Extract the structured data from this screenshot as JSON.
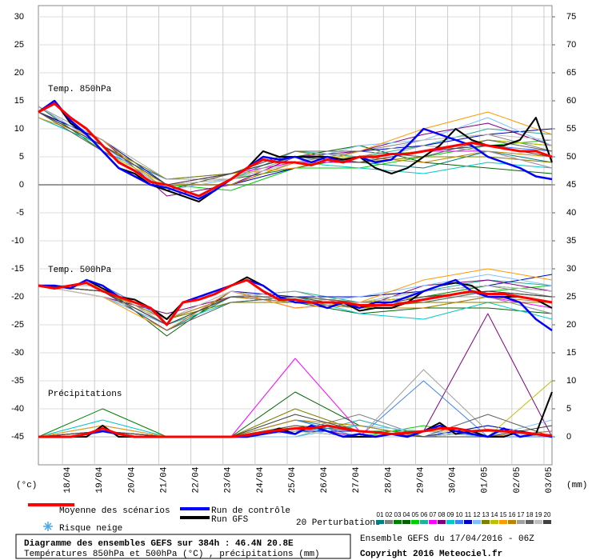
{
  "chart_data": {
    "type": "line",
    "annotations": [
      "Temp. 850hPa",
      "Temp. 500hPa",
      "Précipitations"
    ],
    "y_label": "(°c)",
    "y2_label": "(mm)",
    "xlim": [
      0,
      384
    ],
    "xticks": [
      {
        "value": 18,
        "label": "18/04"
      },
      {
        "value": 42,
        "label": "19/04"
      },
      {
        "value": 66,
        "label": "20/04"
      },
      {
        "value": 90,
        "label": "21/04"
      },
      {
        "value": 114,
        "label": "22/04"
      },
      {
        "value": 138,
        "label": "23/04"
      },
      {
        "value": 162,
        "label": "24/04"
      },
      {
        "value": 186,
        "label": "25/04"
      },
      {
        "value": 210,
        "label": "26/04"
      },
      {
        "value": 234,
        "label": "27/04"
      },
      {
        "value": 258,
        "label": "28/04"
      },
      {
        "value": 282,
        "label": "29/04"
      },
      {
        "value": 306,
        "label": "30/04"
      },
      {
        "value": 330,
        "label": "01/05"
      },
      {
        "value": 354,
        "label": "02/05"
      },
      {
        "value": 378,
        "label": "03/05"
      }
    ],
    "ylim": [
      -50,
      32
    ],
    "yticks": [
      30,
      25,
      20,
      15,
      10,
      5,
      0,
      -5,
      -10,
      -15,
      -20,
      -25,
      -30,
      -35,
      -40,
      -45
    ],
    "y2lim": [
      -5,
      77
    ],
    "y2ticks": [
      75,
      70,
      65,
      60,
      55,
      50,
      45,
      40,
      35,
      30,
      25,
      20,
      15,
      10,
      5,
      0
    ],
    "grid": true,
    "precip_axis": "y2",
    "x": [
      0,
      12,
      24,
      36,
      48,
      60,
      72,
      84,
      96,
      108,
      120,
      132,
      144,
      156,
      168,
      180,
      192,
      204,
      216,
      228,
      240,
      252,
      264,
      276,
      288,
      300,
      312,
      324,
      336,
      348,
      360,
      372,
      384
    ],
    "series": [
      {
        "name": "Moyenne des scénarios",
        "color": "#ff0000",
        "t850": [
          13,
          14.5,
          12,
          10,
          7,
          4,
          2.5,
          0.5,
          0,
          -1,
          -2,
          -0.5,
          1,
          3,
          4.5,
          4,
          4,
          3.5,
          4.5,
          4,
          5,
          5,
          5.5,
          5.5,
          6,
          6.5,
          7,
          7.5,
          7,
          6.5,
          6,
          6,
          5
        ],
        "t500": [
          -18,
          -18.5,
          -18,
          -17.5,
          -19,
          -20,
          -21,
          -22,
          -25,
          -21,
          -20.5,
          -19.5,
          -18,
          -17,
          -19,
          -20.5,
          -20.5,
          -21,
          -21,
          -21,
          -21.5,
          -21.5,
          -21.5,
          -21,
          -20.5,
          -20,
          -19.5,
          -19,
          -19.5,
          -19.5,
          -20,
          -20.5,
          -21
        ],
        "precip": [
          0,
          0,
          0,
          0.5,
          1.5,
          0.5,
          0,
          0,
          0,
          0,
          0,
          0,
          0,
          0.3,
          0.8,
          1.2,
          1.5,
          1.5,
          2,
          1.5,
          1,
          0.8,
          0.5,
          0.7,
          1,
          1.5,
          1.5,
          1,
          1.2,
          1,
          0.8,
          0.5,
          0.2
        ]
      },
      {
        "name": "Run de contrôle",
        "color": "#0000ff",
        "t850": [
          13,
          15,
          11.5,
          9,
          6,
          3,
          1.5,
          0,
          -0.5,
          -1.5,
          -2.5,
          -1,
          1,
          3,
          5,
          4.5,
          5,
          4,
          5,
          4,
          5,
          4,
          4.5,
          7,
          10,
          9,
          8,
          7,
          5,
          4,
          3,
          1.5,
          1
        ],
        "t500": [
          -18,
          -18,
          -18.5,
          -17,
          -18,
          -20,
          -21,
          -22,
          -25,
          -21,
          -20,
          -19,
          -18,
          -17,
          -18,
          -20,
          -21,
          -21,
          -22,
          -21,
          -22,
          -21,
          -21,
          -20,
          -19,
          -18,
          -17,
          -19,
          -20,
          -20,
          -21,
          -24,
          -26
        ],
        "precip": [
          0,
          0,
          0,
          0.5,
          1,
          0.5,
          0,
          0,
          0,
          0,
          0,
          0,
          0,
          0,
          0.5,
          1,
          0.5,
          2,
          1,
          0,
          0.5,
          0,
          0.5,
          0,
          1,
          2,
          1,
          0.5,
          0,
          1.5,
          0,
          0.5,
          0
        ]
      },
      {
        "name": "Run GFS",
        "color": "#000000",
        "t850": [
          13,
          15,
          11,
          9,
          6,
          3,
          2,
          0,
          -1,
          -2,
          -3,
          -1,
          1,
          3,
          6,
          5,
          5,
          5,
          5,
          4.5,
          5,
          3,
          2,
          3,
          5,
          7,
          10,
          8,
          7,
          7,
          8,
          12,
          4
        ],
        "t500": [
          -18,
          -18,
          -18.5,
          -17,
          -18.5,
          -20,
          -20.5,
          -22,
          -24,
          -21,
          -20,
          -19,
          -18,
          -16.5,
          -18,
          -20,
          -21,
          -21,
          -22,
          -21,
          -22.5,
          -22,
          -22,
          -21,
          -19,
          -18,
          -17.5,
          -18,
          -20,
          -20,
          -20,
          -20.5,
          -22
        ],
        "precip": [
          0,
          0,
          0,
          0,
          2,
          0,
          0,
          0,
          0,
          0,
          0,
          0,
          0,
          0,
          0.5,
          1.5,
          0.5,
          2,
          1,
          0,
          0,
          0,
          0.5,
          0,
          1,
          2.5,
          0.5,
          1,
          0,
          0,
          1,
          0.5,
          8
        ]
      }
    ],
    "perturbations_label": "20 Perturbations",
    "perturbation_x": [
      0,
      48,
      96,
      144,
      192,
      240,
      288,
      336,
      384
    ],
    "perturbations": [
      {
        "name": "01",
        "color": "#008080",
        "t850": [
          13,
          8,
          -1,
          2,
          5,
          4,
          3,
          6,
          4
        ],
        "t500": [
          -18,
          -19,
          -26,
          -20,
          -21,
          -22,
          -22,
          -20,
          -23
        ],
        "precip": [
          0,
          1,
          0,
          0,
          3,
          1,
          0,
          2,
          0
        ]
      },
      {
        "name": "02",
        "color": "#808080",
        "t850": [
          13,
          7,
          0,
          0,
          4,
          6,
          8,
          9,
          6
        ],
        "t500": [
          -18,
          -20,
          -24,
          -19,
          -21,
          -20,
          -19,
          -18,
          -20
        ],
        "precip": [
          0,
          2,
          0,
          0,
          1,
          4,
          0,
          1,
          0
        ]
      },
      {
        "name": "03",
        "color": "#008000",
        "t850": [
          14,
          6,
          1,
          1,
          3,
          5,
          6,
          8,
          7
        ],
        "t500": [
          -18,
          -19,
          -25,
          -20,
          -20,
          -21,
          -20,
          -18,
          -19
        ],
        "precip": [
          0,
          5,
          0,
          0,
          2,
          1,
          1,
          0,
          0
        ]
      },
      {
        "name": "04",
        "color": "#006400",
        "t850": [
          12,
          7,
          -1,
          2,
          5,
          7,
          4,
          3,
          2
        ],
        "t500": [
          -18,
          -18,
          -27,
          -19,
          -21,
          -23,
          -22,
          -22,
          -23
        ],
        "precip": [
          0,
          1,
          0,
          0,
          8,
          2,
          0,
          1,
          0
        ]
      },
      {
        "name": "05",
        "color": "#00d000",
        "t850": [
          13,
          8,
          0,
          -1,
          3,
          3,
          5,
          7,
          8
        ],
        "t500": [
          -18,
          -19,
          -24,
          -21,
          -20,
          -22,
          -21,
          -19,
          -18
        ],
        "precip": [
          0,
          0,
          0,
          0,
          1,
          0,
          2,
          0,
          0
        ]
      },
      {
        "name": "06",
        "color": "#20b0a0",
        "t850": [
          13,
          6,
          1,
          1,
          6,
          5,
          7,
          10,
          9
        ],
        "t500": [
          -18,
          -20,
          -25,
          -20,
          -19,
          -21,
          -19,
          -17,
          -18
        ],
        "precip": [
          0,
          2,
          0,
          0,
          0,
          3,
          0,
          1,
          0
        ]
      },
      {
        "name": "07",
        "color": "#ff00ff",
        "t850": [
          14,
          7,
          0,
          2,
          4,
          4,
          6,
          6,
          3
        ],
        "t500": [
          -18,
          -19,
          -26,
          -19,
          -22,
          -21,
          -20,
          -20,
          -22
        ],
        "precip": [
          0,
          1,
          0,
          0,
          14,
          1,
          0,
          0,
          1
        ]
      },
      {
        "name": "08",
        "color": "#800080",
        "t850": [
          13,
          8,
          -2,
          0,
          5,
          6,
          9,
          11,
          7
        ],
        "t500": [
          -18,
          -20,
          -23,
          -20,
          -21,
          -22,
          -18,
          -17,
          -19
        ],
        "precip": [
          0,
          1,
          0,
          0,
          2,
          0,
          1,
          22,
          0
        ]
      },
      {
        "name": "09",
        "color": "#00c8c8",
        "t850": [
          12,
          7,
          0,
          1,
          4,
          3,
          2,
          4,
          3
        ],
        "t500": [
          -18,
          -19,
          -25,
          -21,
          -20,
          -23,
          -24,
          -21,
          -24
        ],
        "precip": [
          0,
          3,
          0,
          0,
          1,
          2,
          0,
          1,
          0
        ]
      },
      {
        "name": "10",
        "color": "#4080ff",
        "t850": [
          13,
          6,
          1,
          2,
          5,
          5,
          6,
          7,
          6
        ],
        "t500": [
          -18,
          -18,
          -24,
          -20,
          -21,
          -21,
          -20,
          -19,
          -20
        ],
        "precip": [
          0,
          1,
          0,
          0,
          3,
          0,
          10,
          0,
          0
        ]
      },
      {
        "name": "11",
        "color": "#0000c0",
        "t850": [
          13,
          8,
          0,
          0,
          3,
          6,
          7,
          9,
          10
        ],
        "t500": [
          -18,
          -19,
          -26,
          -19,
          -20,
          -20,
          -19,
          -18,
          -16
        ],
        "precip": [
          0,
          0,
          0,
          0,
          1,
          1,
          0,
          2,
          0
        ]
      },
      {
        "name": "12",
        "color": "#80c0ff",
        "t850": [
          14,
          7,
          -1,
          1,
          4,
          7,
          8,
          12,
          7
        ],
        "t500": [
          -18,
          -20,
          -25,
          -20,
          -21,
          -20,
          -18,
          -16,
          -18
        ],
        "precip": [
          0,
          2,
          0,
          0,
          0,
          2,
          1,
          0,
          3
        ]
      },
      {
        "name": "13",
        "color": "#808000",
        "t850": [
          13,
          7,
          1,
          2,
          6,
          4,
          5,
          5,
          4
        ],
        "t500": [
          -18,
          -19,
          -24,
          -21,
          -21,
          -22,
          -21,
          -21,
          -21
        ],
        "precip": [
          0,
          1,
          0,
          0,
          5,
          1,
          0,
          1,
          0
        ]
      },
      {
        "name": "14",
        "color": "#c0c000",
        "t850": [
          13,
          6,
          0,
          1,
          5,
          5,
          6,
          8,
          7
        ],
        "t500": [
          -18,
          -19,
          -25,
          -20,
          -20,
          -21,
          -20,
          -19,
          -20
        ],
        "precip": [
          0,
          1,
          0,
          0,
          2,
          1,
          0,
          0,
          10
        ]
      },
      {
        "name": "15",
        "color": "#ff9900",
        "t850": [
          12,
          8,
          -1,
          2,
          3,
          6,
          10,
          13,
          9
        ],
        "t500": [
          -18,
          -20,
          -26,
          -19,
          -22,
          -21,
          -17,
          -15,
          -17
        ],
        "precip": [
          0,
          2,
          0,
          0,
          1,
          0,
          1,
          1,
          0
        ]
      },
      {
        "name": "16",
        "color": "#c08000",
        "t850": [
          13,
          7,
          0,
          0,
          4,
          5,
          4,
          6,
          5
        ],
        "t500": [
          -18,
          -19,
          -24,
          -20,
          -21,
          -22,
          -22,
          -20,
          -21
        ],
        "precip": [
          0,
          0,
          0,
          0,
          3,
          2,
          0,
          0,
          1
        ]
      },
      {
        "name": "17",
        "color": "#a0a0a0",
        "t850": [
          14,
          8,
          1,
          1,
          5,
          4,
          7,
          6,
          3
        ],
        "t500": [
          -18,
          -18,
          -25,
          -20,
          -19,
          -22,
          -20,
          -20,
          -23
        ],
        "precip": [
          0,
          1,
          0,
          0,
          1,
          0,
          12,
          1,
          0
        ]
      },
      {
        "name": "18",
        "color": "#606060",
        "t850": [
          13,
          6,
          -1,
          2,
          6,
          6,
          5,
          8,
          6
        ],
        "t500": [
          -18,
          -19,
          -26,
          -21,
          -20,
          -21,
          -21,
          -19,
          -20
        ],
        "precip": [
          0,
          1,
          0,
          0,
          2,
          1,
          0,
          4,
          0
        ]
      },
      {
        "name": "19",
        "color": "#c0c0c0",
        "t850": [
          13,
          7,
          0,
          1,
          4,
          5,
          8,
          9,
          8
        ],
        "t500": [
          -18,
          -20,
          -24,
          -19,
          -21,
          -21,
          -19,
          -18,
          -19
        ],
        "precip": [
          0,
          0,
          0,
          0,
          1,
          0,
          0,
          1,
          0
        ]
      },
      {
        "name": "20",
        "color": "#404040",
        "t850": [
          13,
          7,
          0,
          2,
          5,
          4,
          6,
          7,
          5
        ],
        "t500": [
          -18,
          -19,
          -25,
          -20,
          -20,
          -22,
          -20,
          -19,
          -20
        ],
        "precip": [
          0,
          1,
          0,
          0,
          4,
          1,
          0,
          0,
          2
        ]
      }
    ],
    "snow_label": "Risque neige",
    "footer": {
      "title": "Diagramme des ensembles GEFS sur 384h : 46.4N 20.8E",
      "subtitle": "Températures 850hPa et 500hPa (°C) , précipitations (mm)",
      "run": "Ensemble GEFS du 17/04/2016 - 06Z",
      "copyright": "Copyright 2016 Meteociel.fr"
    }
  }
}
